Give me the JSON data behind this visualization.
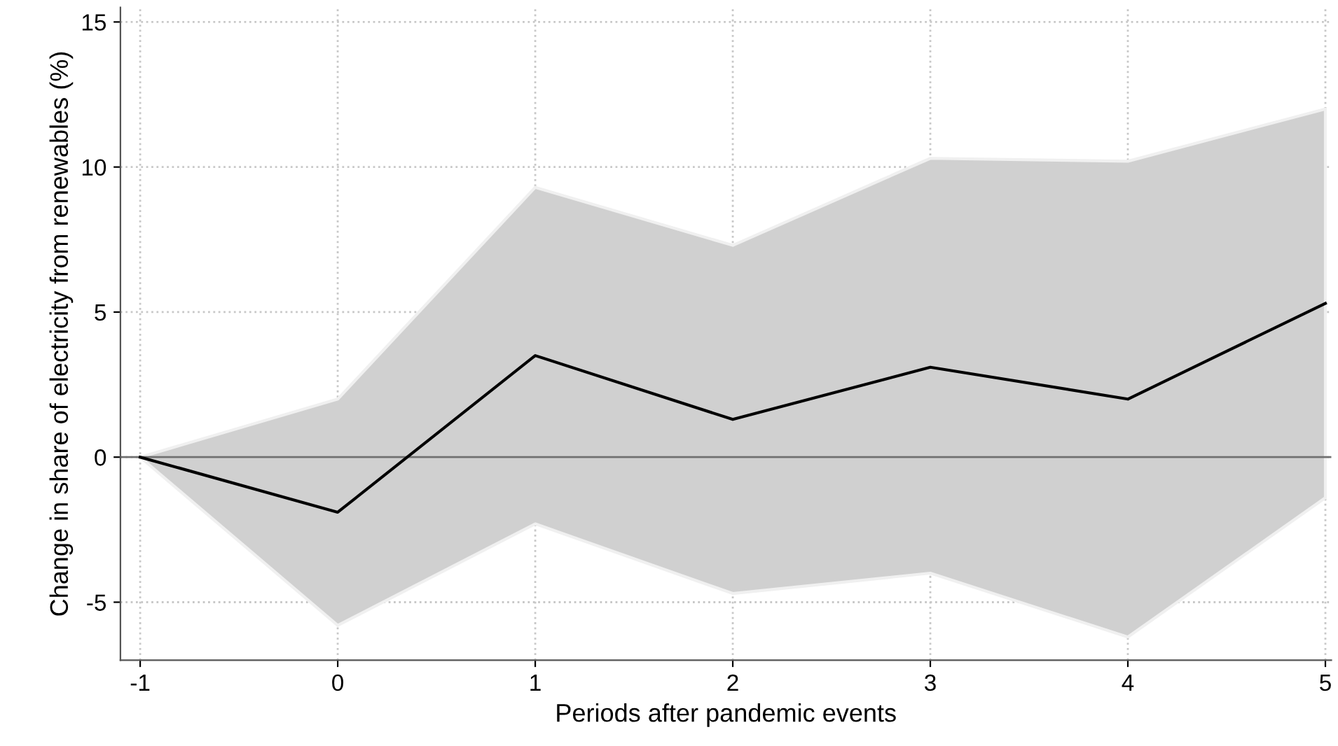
{
  "chart_data": {
    "type": "line",
    "xlabel": "Periods after pandemic events",
    "ylabel": "Change in share of electricity from renewables (%)",
    "x": [
      -1,
      0,
      1,
      2,
      3,
      4,
      5
    ],
    "series": [
      {
        "color": "#000000",
        "values": [
          0,
          -1.9,
          3.5,
          1.3,
          3.1,
          2.0,
          5.3
        ],
        "lower": [
          0,
          -5.8,
          -2.3,
          -4.7,
          -4.0,
          -6.2,
          -1.4
        ],
        "upper": [
          0,
          2.0,
          9.3,
          7.3,
          10.3,
          10.2,
          12.0
        ]
      }
    ],
    "xlim": [
      -1.1,
      5.03
    ],
    "ylim": [
      -7,
      15.5
    ],
    "xticks": [
      -1,
      0,
      1,
      2,
      3,
      4,
      5
    ],
    "yticks": [
      -5,
      0,
      5,
      10,
      15
    ],
    "ref_lines": [
      {
        "axis": "y",
        "value": 0,
        "color": "#707070"
      }
    ],
    "grid": true,
    "line_style": "solid",
    "marker": "none"
  }
}
